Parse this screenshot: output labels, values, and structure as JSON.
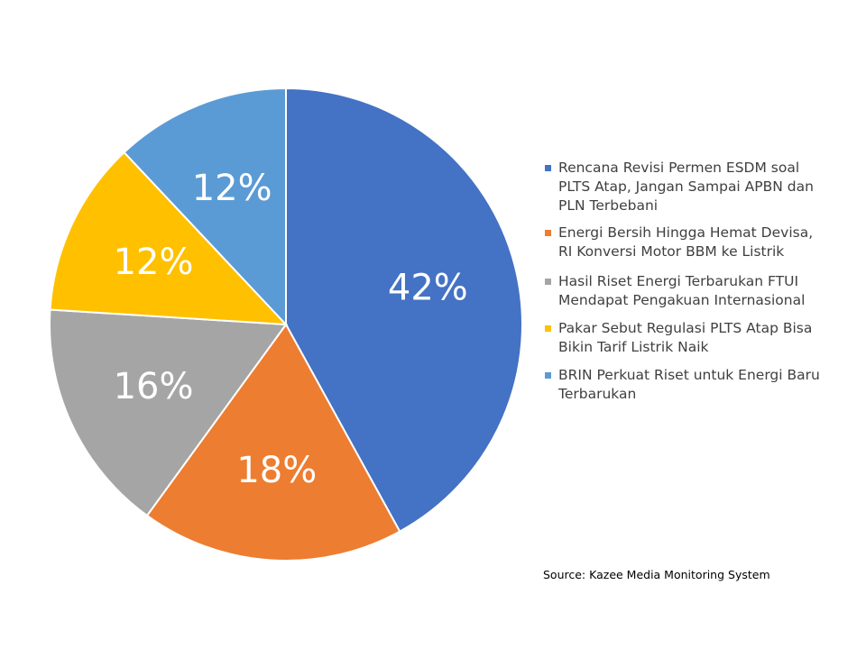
{
  "chart_data": {
    "type": "pie",
    "title": "",
    "categories": [
      "Rencana Revisi Permen ESDM soal PLTS Atap, Jangan Sampai APBN dan PLN Terbebani",
      "Energi Bersih Hingga Hemat Devisa, RI Konversi Motor BBM ke Listrik",
      "Hasil Riset Energi Terbarukan FTUI Mendapat Pengakuan Internasional",
      "Pakar Sebut Regulasi PLTS Atap Bisa Bikin Tarif Listrik Naik",
      "BRIN Perkuat Riset untuk Energi Baru Terbarukan"
    ],
    "values": [
      42,
      18,
      16,
      12,
      12
    ],
    "value_labels": [
      "42%",
      "18%",
      "16%",
      "12%",
      "12%"
    ],
    "colors": [
      "#4472C4",
      "#ED7D31",
      "#A5A5A5",
      "#FFC000",
      "#5B9BD5"
    ],
    "legend_position": "right",
    "start": "12 o'clock",
    "direction": "clockwise"
  },
  "source": "Source: Kazee Media Monitoring System"
}
